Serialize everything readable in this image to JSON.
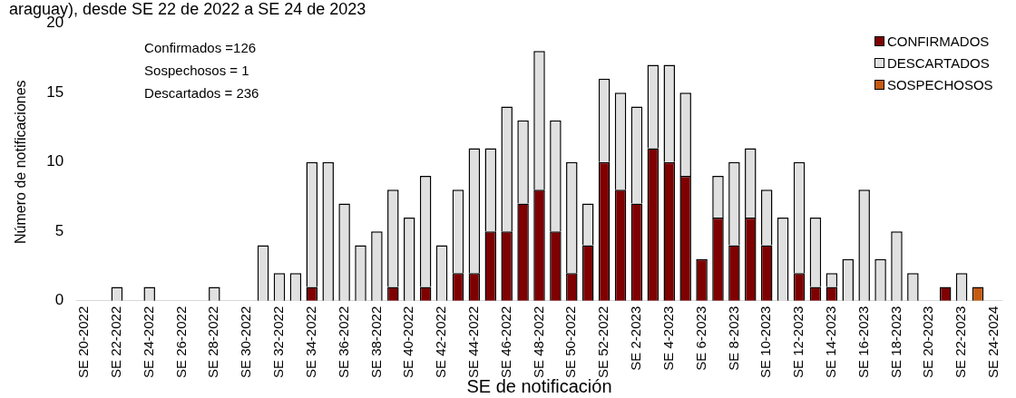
{
  "chart_data": {
    "type": "bar",
    "stacked": true,
    "title": "araguay), desde SE 22 de 2022 a SE 24 de 2023",
    "xlabel": "SE de notificación",
    "ylabel": "Número de notificaciones",
    "categories": [
      "SE 20-2022",
      null,
      "SE 22-2022",
      null,
      "SE 24-2022",
      null,
      "SE 26-2022",
      null,
      "SE 28-2022",
      null,
      "SE 30-2022",
      null,
      "SE 32-2022",
      null,
      "SE 34-2022",
      null,
      "SE 36-2022",
      null,
      "SE 38-2022",
      null,
      "SE 40-2022",
      null,
      "SE 42-2022",
      null,
      "SE 44-2022",
      null,
      "SE 46-2022",
      null,
      "SE 48-2022",
      null,
      "SE 50-2022",
      null,
      "SE 52-2022",
      null,
      "SE 2-2023",
      null,
      "SE 4-2023",
      null,
      "SE 6-2023",
      null,
      "SE 8-2023",
      null,
      "SE 10-2023",
      null,
      "SE 12-2023",
      null,
      "SE 14-2023",
      null,
      "SE 16-2023",
      null,
      "SE 18-2023",
      null,
      "SE 20-2023",
      null,
      "SE 22-2023",
      null,
      "SE 24-2024"
    ],
    "series": [
      {
        "name": "CONFIRMADOS",
        "color": "#7f0000",
        "values": [
          0,
          0,
          0,
          0,
          0,
          0,
          0,
          0,
          0,
          0,
          0,
          0,
          0,
          0,
          1,
          0,
          0,
          0,
          0,
          1,
          0,
          1,
          0,
          2,
          2,
          5,
          5,
          7,
          8,
          5,
          2,
          4,
          10,
          8,
          7,
          11,
          10,
          9,
          3,
          6,
          4,
          6,
          4,
          0,
          2,
          1,
          1,
          0,
          0,
          0,
          0,
          0,
          0,
          1,
          0,
          0,
          0
        ]
      },
      {
        "name": "DESCARTADOS",
        "color": "#e0e0e0",
        "values": [
          0,
          0,
          1,
          0,
          1,
          0,
          0,
          0,
          1,
          0,
          0,
          4,
          2,
          2,
          9,
          10,
          7,
          4,
          5,
          7,
          6,
          8,
          4,
          6,
          9,
          6,
          9,
          6,
          10,
          8,
          8,
          3,
          6,
          7,
          7,
          6,
          7,
          6,
          0,
          3,
          6,
          5,
          4,
          6,
          8,
          5,
          1,
          3,
          8,
          3,
          5,
          2,
          0,
          0,
          2,
          0,
          0
        ]
      },
      {
        "name": "SOSPECHOSOS",
        "color": "#c55a11",
        "values": [
          0,
          0,
          0,
          0,
          0,
          0,
          0,
          0,
          0,
          0,
          0,
          0,
          0,
          0,
          0,
          0,
          0,
          0,
          0,
          0,
          0,
          0,
          0,
          0,
          0,
          0,
          0,
          0,
          0,
          0,
          0,
          0,
          0,
          0,
          0,
          0,
          0,
          0,
          0,
          0,
          0,
          0,
          0,
          0,
          0,
          0,
          0,
          0,
          0,
          0,
          0,
          0,
          0,
          0,
          0,
          1,
          0
        ]
      }
    ],
    "ylim": [
      0,
      20
    ],
    "yticks": [
      0,
      5,
      10,
      15,
      20
    ],
    "grid": false,
    "legend": "top right",
    "annotations": [
      "Confirmados =126",
      "Sospechosos = 1",
      "Descartados = 236"
    ]
  }
}
